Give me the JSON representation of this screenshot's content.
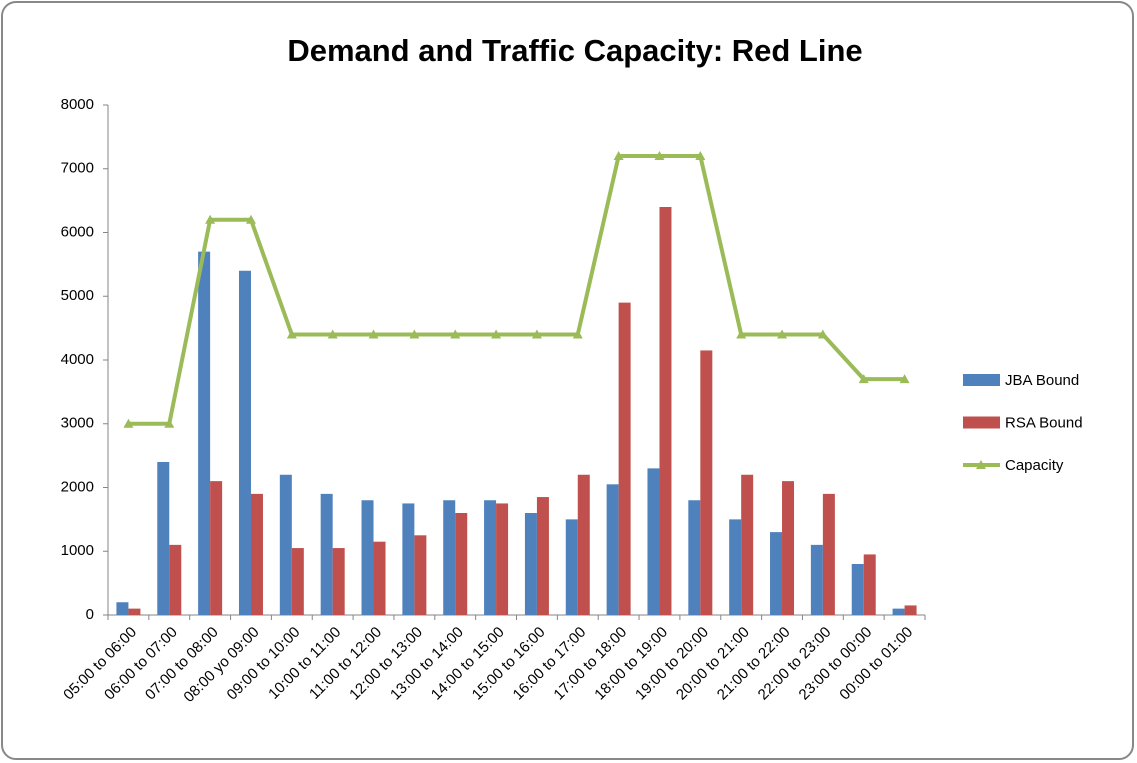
{
  "chart_data": {
    "type": "bar",
    "title": "Demand and Traffic Capacity: Red Line",
    "categories": [
      "05:00 to 06:00",
      "06:00 to 07:00",
      "07:00 to 08:00",
      "08:00 yo 09:00",
      "09:00 to 10:00",
      "10:00 to 11:00",
      "11:00 to 12:00",
      "12:00 to 13:00",
      "13:00 to 14:00",
      "14:00 to 15:00",
      "15:00 to 16:00",
      "16:00 to 17:00",
      "17:00 to 18:00",
      "18:00 to 19:00",
      "19:00 to 20:00",
      "20:00 to 21:00",
      "21:00 to 22:00",
      "22:00 to 23:00",
      "23:00 to 00:00",
      "00:00 to 01:00"
    ],
    "series": [
      {
        "name": "JBA Bound",
        "type": "bar",
        "color": "#4f81bd",
        "values": [
          200,
          2400,
          5700,
          5400,
          2200,
          1900,
          1800,
          1750,
          1800,
          1800,
          1600,
          1500,
          2050,
          2300,
          1800,
          1500,
          1300,
          1100,
          800,
          100
        ]
      },
      {
        "name": "RSA Bound",
        "type": "bar",
        "color": "#c0504d",
        "values": [
          100,
          1100,
          2100,
          1900,
          1050,
          1050,
          1150,
          1250,
          1600,
          1750,
          1850,
          2200,
          4900,
          6400,
          4150,
          2200,
          2100,
          1900,
          950,
          150
        ]
      },
      {
        "name": "Capacity",
        "type": "line",
        "color": "#9bbb59",
        "values": [
          3000,
          3000,
          6200,
          6200,
          4400,
          4400,
          4400,
          4400,
          4400,
          4400,
          4400,
          4400,
          7200,
          7200,
          7200,
          4400,
          4400,
          4400,
          3700,
          3700
        ]
      }
    ],
    "ylim": [
      0,
      8000
    ],
    "yticks": [
      0,
      1000,
      2000,
      3000,
      4000,
      5000,
      6000,
      7000,
      8000
    ],
    "grid": false,
    "legend": "right"
  }
}
